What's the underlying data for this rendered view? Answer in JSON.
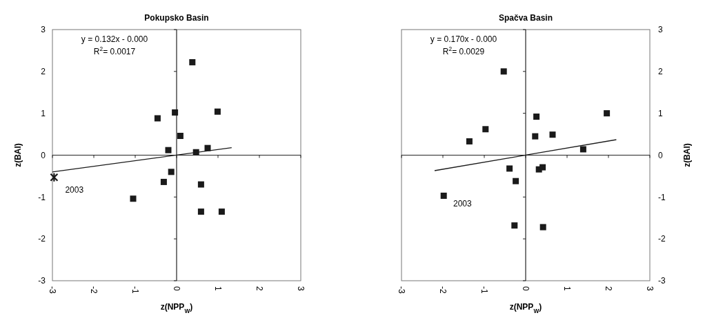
{
  "chart_data": [
    {
      "type": "scatter",
      "title": "Pokupsko Basin",
      "xlabel": "z(NPP$_{W}$)",
      "ylabel": "z(BAI)",
      "xlim": [
        -3,
        3
      ],
      "xticks": [
        -3,
        -2,
        -1,
        0,
        1,
        2,
        3
      ],
      "ylim": [
        -3,
        3
      ],
      "yticks": [
        -3,
        -2,
        -1,
        0,
        1,
        2,
        3
      ],
      "grid": false,
      "ref_lines": [
        {
          "axis": "x",
          "value": 0,
          "color": "#222222"
        },
        {
          "axis": "y",
          "value": 0,
          "color": "#222222"
        }
      ],
      "series": [
        {
          "marker": "square",
          "color": "#1a1a1a",
          "x": [
            0.38,
            0.99,
            -0.46,
            -0.04,
            0.09,
            -0.2,
            0.75,
            0.47,
            -0.13,
            -0.31,
            -1.05,
            0.59,
            0.59,
            1.09
          ],
          "values": [
            2.22,
            1.04,
            0.88,
            1.02,
            0.46,
            0.12,
            0.17,
            0.07,
            -0.4,
            -0.64,
            -1.04,
            -0.7,
            -1.35,
            -1.35
          ]
        },
        {
          "marker": "cross",
          "color": "#1a1a1a",
          "x": [
            -2.96
          ],
          "values": [
            -0.53
          ]
        },
        {
          "type": "line",
          "color": "#1a1a1a",
          "x": [
            -3,
            1.33
          ],
          "values": [
            -0.4,
            0.18
          ]
        }
      ],
      "annotations": [
        "y = 0.132x - 0.000",
        "R$^{2}$= 0.0017",
        {
          "text": "2003",
          "x": -2.96,
          "y": -0.53
        }
      ]
    },
    {
      "type": "scatter",
      "title": "Spačva Basin",
      "xlabel": "z(NPP$_{W}$)",
      "y2label": "z(BAI)",
      "xlim": [
        -3,
        3
      ],
      "xticks": [
        -3,
        -2,
        -1,
        0,
        1,
        2,
        3
      ],
      "y2lim": [
        -3,
        3
      ],
      "y2ticks": [
        -3,
        -2,
        -1,
        0,
        1,
        2,
        3
      ],
      "grid": false,
      "ref_lines": [
        {
          "axis": "x",
          "value": 0,
          "color": "#222222"
        },
        {
          "axis": "y2",
          "value": 0,
          "color": "#222222"
        }
      ],
      "series": [
        {
          "axis": "y2",
          "marker": "square",
          "color": "#1a1a1a",
          "x": [
            -0.53,
            1.96,
            0.26,
            -0.97,
            -1.36,
            0.23,
            0.65,
            1.39,
            -0.39,
            0.32,
            0.41,
            -0.24,
            -0.27,
            0.42,
            -1.98
          ],
          "values": [
            2.0,
            1.0,
            0.92,
            0.62,
            0.33,
            0.45,
            0.49,
            0.14,
            -0.32,
            -0.34,
            -0.29,
            -0.62,
            -1.68,
            -1.72,
            -0.97
          ]
        },
        {
          "type": "line",
          "axis": "y2",
          "color": "#1a1a1a",
          "x": [
            -2.2,
            2.19
          ],
          "values": [
            -0.37,
            0.37
          ]
        }
      ],
      "annotations": [
        "y = 0.170x - 0.000",
        "R$^{2}$= 0.0029",
        "2003"
      ]
    }
  ]
}
